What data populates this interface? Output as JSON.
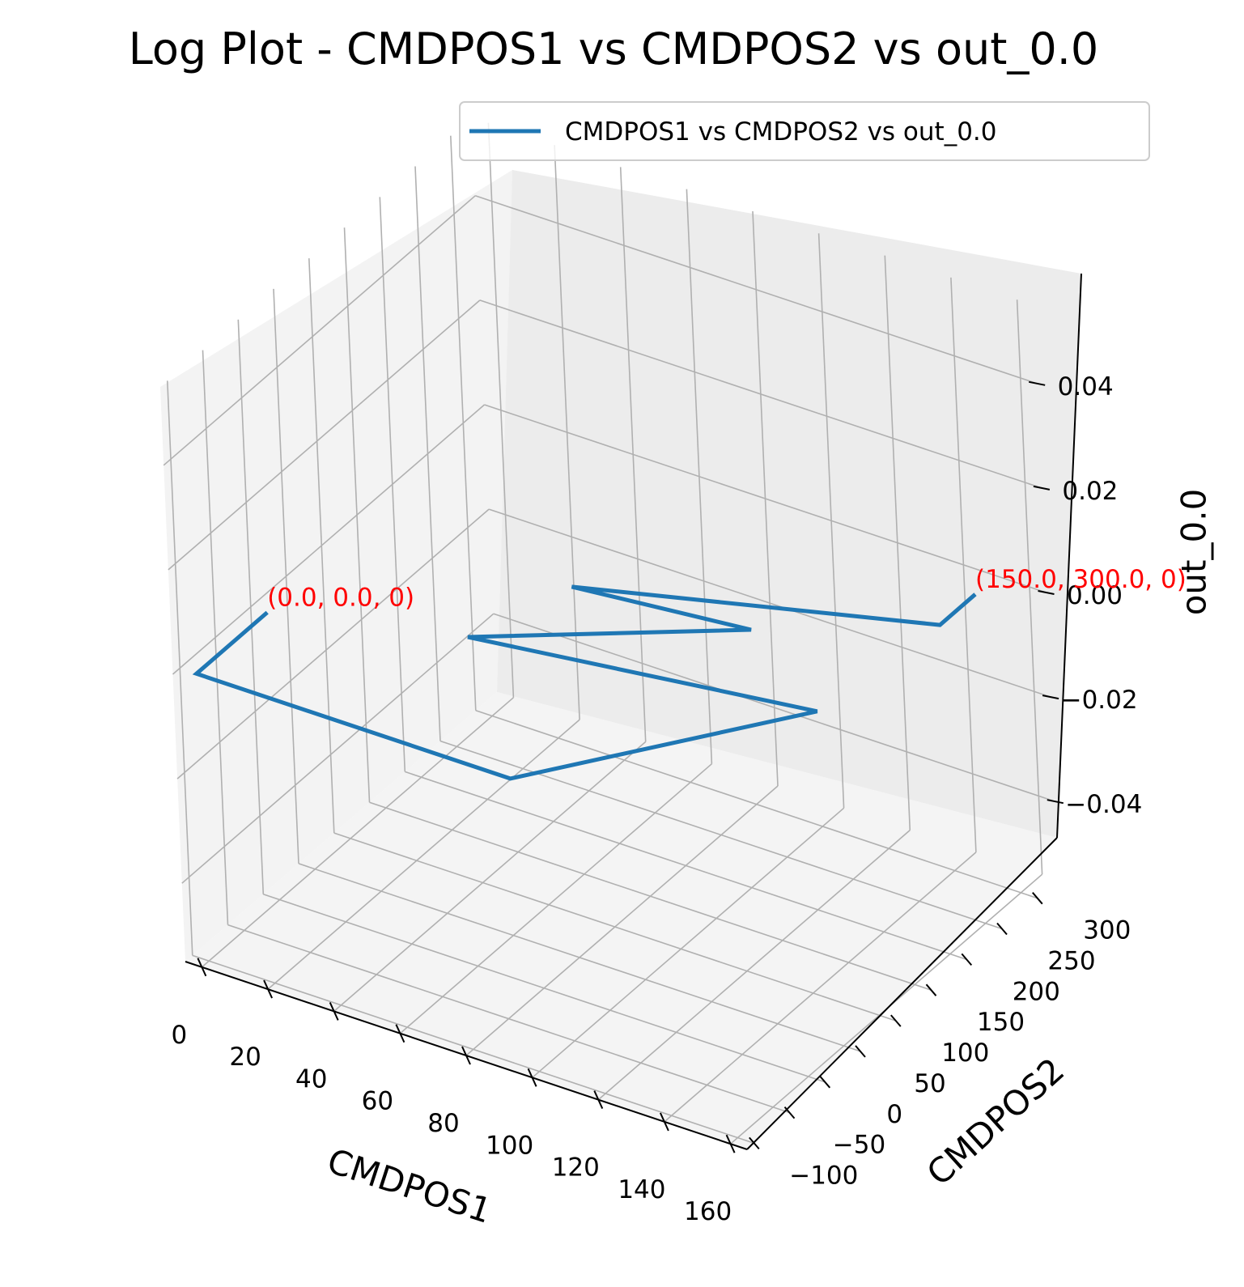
{
  "chart_data": {
    "type": "line",
    "title": "Log Plot - CMDPOS1 vs CMDPOS2 vs out_0.0",
    "xlabel": "CMDPOS1",
    "ylabel": "CMDPOS2",
    "zlabel": "out_0.0",
    "xlim": [
      -5,
      165
    ],
    "ylim": [
      -110,
      330
    ],
    "zlim": [
      -0.055,
      0.055
    ],
    "xticks": [
      "0",
      "20",
      "40",
      "60",
      "80",
      "100",
      "120",
      "140",
      "160"
    ],
    "yticks": [
      "−100",
      "−50",
      "0",
      "50",
      "100",
      "150",
      "200",
      "250",
      "300"
    ],
    "zticks": [
      "−0.04",
      "−0.02",
      "0.00",
      "0.02",
      "0.04"
    ],
    "grid": true,
    "legend_position": "top-right",
    "color": "#1f77b4",
    "series": [
      {
        "name": "CMDPOS1 vs CMDPOS2 vs out_0.0",
        "x": [
          0,
          0,
          95,
          145,
          50,
          110,
          60,
          150,
          150
        ],
        "y": [
          0,
          -100,
          -100,
          100,
          50,
          170,
          150,
          250,
          300
        ],
        "z": [
          0,
          0,
          0,
          0,
          0,
          0,
          0,
          0,
          0
        ]
      }
    ],
    "annotations": [
      {
        "text": "(0.0, 0.0, 0)",
        "x": 0,
        "y": 0,
        "z": 0
      },
      {
        "text": "(150.0, 300.0, 0)",
        "x": 150,
        "y": 300,
        "z": 0
      }
    ]
  }
}
